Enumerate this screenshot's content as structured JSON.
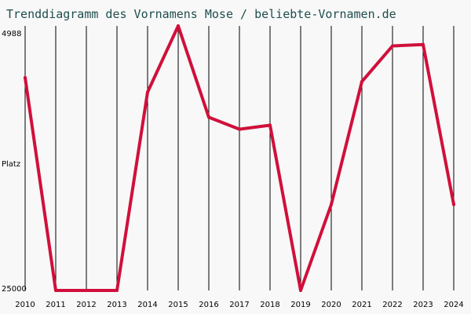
{
  "chart_data": {
    "type": "line",
    "title": "Trenddiagramm des Vornamens Mose / beliebte-Vornamen.de",
    "xlabel": "",
    "ylabel": "Platz",
    "x": [
      2010,
      2011,
      2012,
      2013,
      2014,
      2015,
      2016,
      2017,
      2018,
      2019,
      2020,
      2021,
      2022,
      2023,
      2024
    ],
    "x_tick_labels": [
      "2010",
      "2011",
      "2012",
      "2013",
      "2014",
      "2015",
      "2016",
      "2017",
      "2018",
      "2019",
      "2020",
      "2021",
      "2022",
      "2023",
      "2024"
    ],
    "y_tick_labels": [
      "4988",
      "25000"
    ],
    "ylim": [
      25000,
      4988
    ],
    "y_axis_inverted": true,
    "grid": "vertical lines at each year",
    "legend": "none",
    "series": [
      {
        "values": [
          8900,
          25000,
          25000,
          25000,
          10000,
          4988,
          11900,
          12800,
          12500,
          25000,
          18500,
          9200,
          6500,
          6400,
          18500
        ],
        "color": "#d0103a"
      }
    ],
    "colors": {
      "background": "#f8f8f8",
      "grid": "#000000",
      "line": "#d0103a",
      "title": "#1f4d4d"
    }
  }
}
